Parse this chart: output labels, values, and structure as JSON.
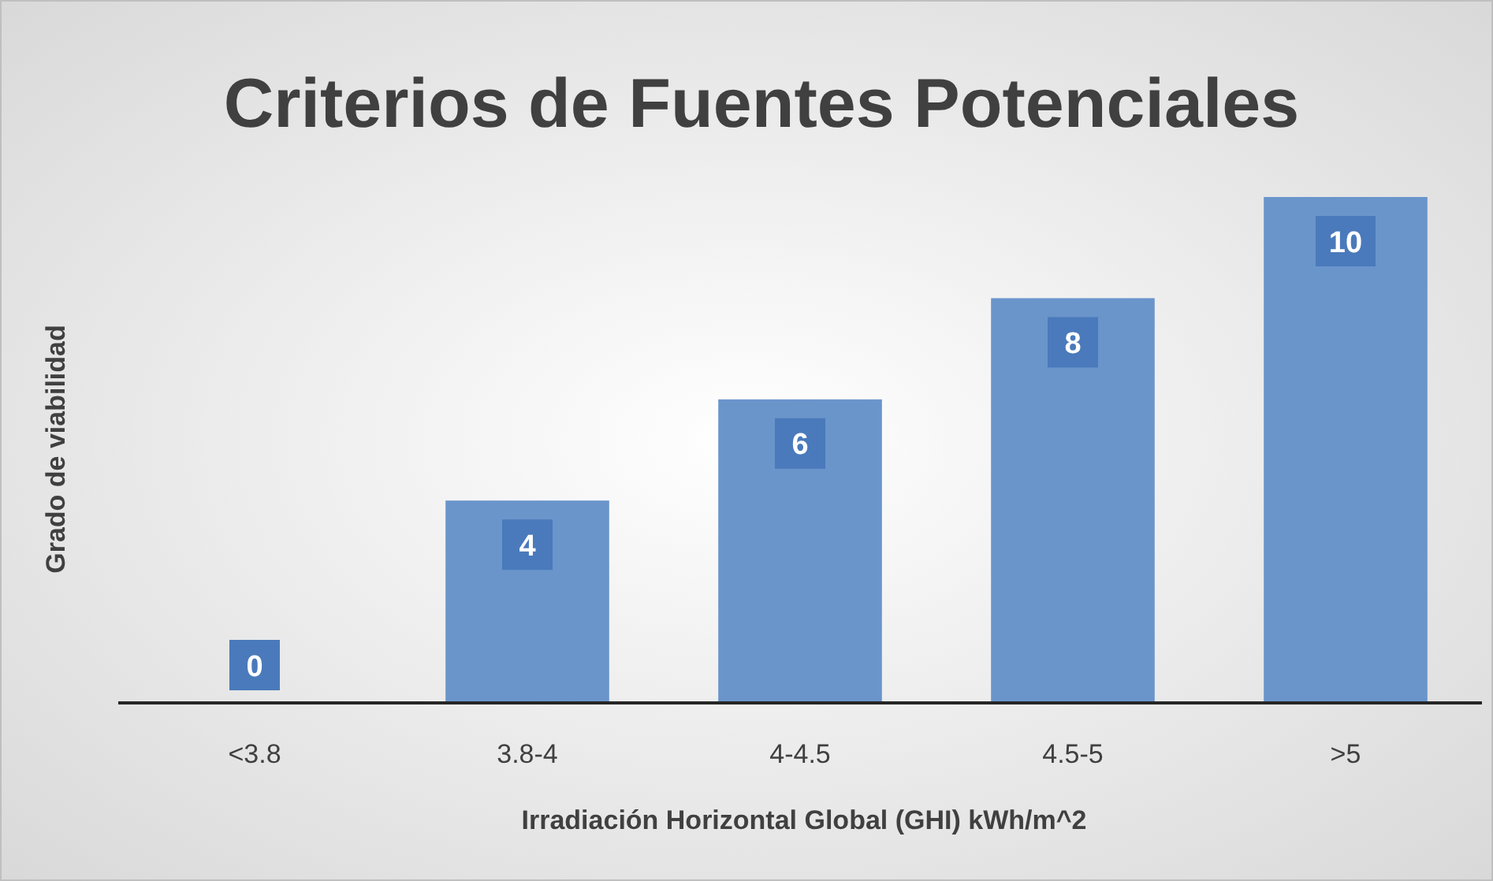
{
  "chart_data": {
    "type": "bar",
    "title": "Criterios de Fuentes Potenciales",
    "xlabel": "Irradiación Horizontal Global (GHI) kWh/m^2",
    "ylabel": "Grado de viabilidad",
    "categories": [
      "<3.8",
      "3.8-4",
      "4-4.5",
      "4.5-5",
      ">5"
    ],
    "values": [
      0,
      4,
      6,
      8,
      10
    ],
    "color": "#6a95cb",
    "data_labels": true
  }
}
